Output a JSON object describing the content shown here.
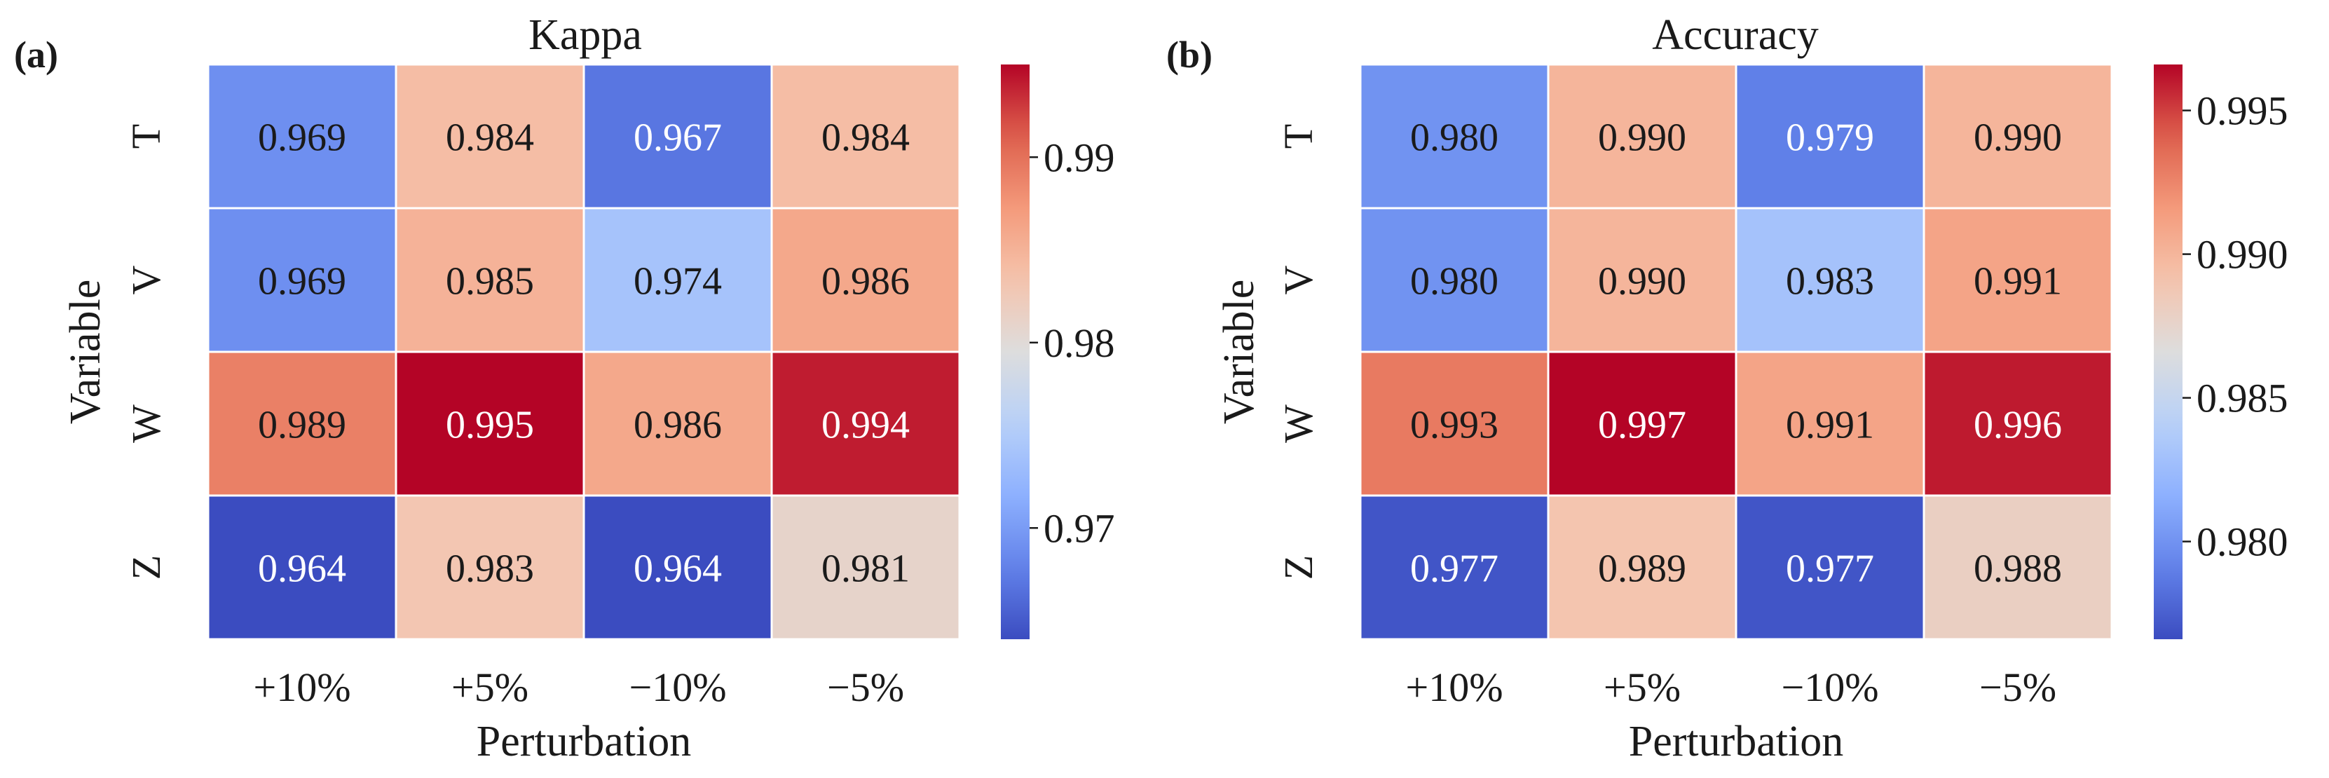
{
  "chart_data": [
    {
      "type": "heatmap",
      "panel_label": "(a)",
      "title": "Kappa",
      "xlabel": "Perturbation",
      "ylabel": "Variable",
      "x_categories": [
        "+10%",
        "+5%",
        "−10%",
        "−5%"
      ],
      "y_categories": [
        "T",
        "V",
        "W",
        "Z"
      ],
      "values": [
        [
          0.969,
          0.984,
          0.967,
          0.984
        ],
        [
          0.969,
          0.985,
          0.974,
          0.986
        ],
        [
          0.989,
          0.995,
          0.986,
          0.994
        ],
        [
          0.964,
          0.983,
          0.964,
          0.981
        ]
      ],
      "value_labels": [
        [
          "0.969",
          "0.984",
          "0.967",
          "0.984"
        ],
        [
          "0.969",
          "0.985",
          "0.974",
          "0.986"
        ],
        [
          "0.989",
          "0.995",
          "0.986",
          "0.994"
        ],
        [
          "0.964",
          "0.983",
          "0.964",
          "0.981"
        ]
      ],
      "colormap": "coolwarm",
      "color_range": [
        0.964,
        0.995
      ],
      "colorbar_ticks": [
        0.97,
        0.98,
        0.99
      ],
      "colorbar_tick_labels": [
        "0.97",
        "0.98",
        "0.99"
      ]
    },
    {
      "type": "heatmap",
      "panel_label": "(b)",
      "title": "Accuracy",
      "xlabel": "Perturbation",
      "ylabel": "Variable",
      "x_categories": [
        "+10%",
        "+5%",
        "−10%",
        "−5%"
      ],
      "y_categories": [
        "T",
        "V",
        "W",
        "Z"
      ],
      "values": [
        [
          0.98,
          0.99,
          0.979,
          0.99
        ],
        [
          0.98,
          0.99,
          0.983,
          0.991
        ],
        [
          0.993,
          0.997,
          0.991,
          0.996
        ],
        [
          0.977,
          0.989,
          0.977,
          0.988
        ]
      ],
      "value_labels": [
        [
          "0.980",
          "0.990",
          "0.979",
          "0.990"
        ],
        [
          "0.980",
          "0.990",
          "0.983",
          "0.991"
        ],
        [
          "0.993",
          "0.997",
          "0.991",
          "0.996"
        ],
        [
          "0.977",
          "0.989",
          "0.977",
          "0.988"
        ]
      ],
      "colormap": "coolwarm",
      "color_range": [
        0.9766,
        0.9966
      ],
      "colorbar_ticks": [
        0.98,
        0.985,
        0.99,
        0.995
      ],
      "colorbar_tick_labels": [
        "0.980",
        "0.985",
        "0.990",
        "0.995"
      ]
    }
  ]
}
